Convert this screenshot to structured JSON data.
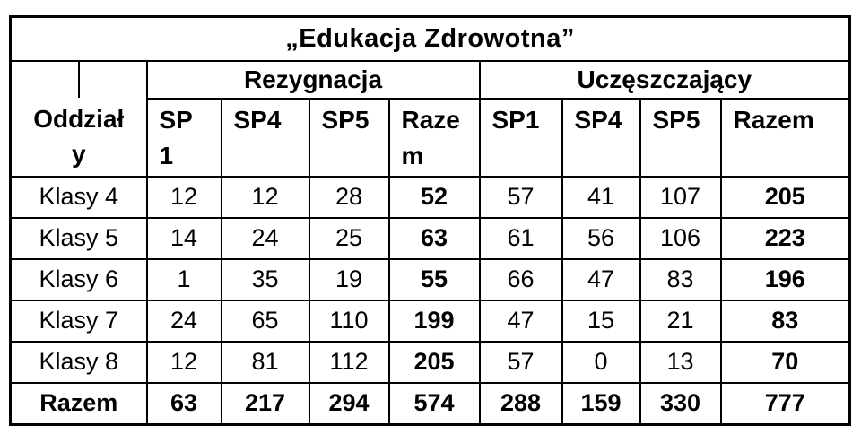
{
  "title": "„Edukacja Zdrowotna”",
  "header": {
    "row_dimension": {
      "label": "Oddziały",
      "lines": [
        "Oddział",
        "y"
      ]
    },
    "groups": [
      {
        "label": "Rezygnacja"
      },
      {
        "label": "Uczęszczający"
      }
    ],
    "columns": [
      {
        "group": "Rezygnacja",
        "label": "SP 1",
        "lines": [
          "SP",
          "1"
        ]
      },
      {
        "group": "Rezygnacja",
        "label": "SP4",
        "lines": [
          "SP4"
        ]
      },
      {
        "group": "Rezygnacja",
        "label": "SP5",
        "lines": [
          "SP5"
        ]
      },
      {
        "group": "Rezygnacja",
        "label": "Razem",
        "lines": [
          "Raze",
          "m"
        ]
      },
      {
        "group": "Uczęszczający",
        "label": "SP1",
        "lines": [
          "SP1"
        ]
      },
      {
        "group": "Uczęszczający",
        "label": "SP4",
        "lines": [
          "SP4"
        ]
      },
      {
        "group": "Uczęszczający",
        "label": "SP5",
        "lines": [
          "SP5"
        ]
      },
      {
        "group": "Uczęszczający",
        "label": "Razem",
        "lines": [
          "Razem"
        ]
      }
    ]
  },
  "rows": [
    {
      "label": "Klasy 4",
      "values": [
        12,
        12,
        28,
        52,
        57,
        41,
        107,
        205
      ]
    },
    {
      "label": "Klasy 5",
      "values": [
        14,
        24,
        25,
        63,
        61,
        56,
        106,
        223
      ]
    },
    {
      "label": "Klasy 6",
      "values": [
        1,
        35,
        19,
        55,
        66,
        47,
        83,
        196
      ]
    },
    {
      "label": "Klasy 7",
      "values": [
        24,
        65,
        110,
        199,
        47,
        15,
        21,
        83
      ]
    },
    {
      "label": "Klasy 8",
      "values": [
        12,
        81,
        112,
        205,
        57,
        0,
        13,
        70
      ]
    }
  ],
  "totals": {
    "label": "Razem",
    "values": [
      63,
      217,
      294,
      574,
      288,
      159,
      330,
      777
    ]
  },
  "colors": {
    "border": "#000000",
    "background": "#ffffff",
    "text": "#000000"
  }
}
